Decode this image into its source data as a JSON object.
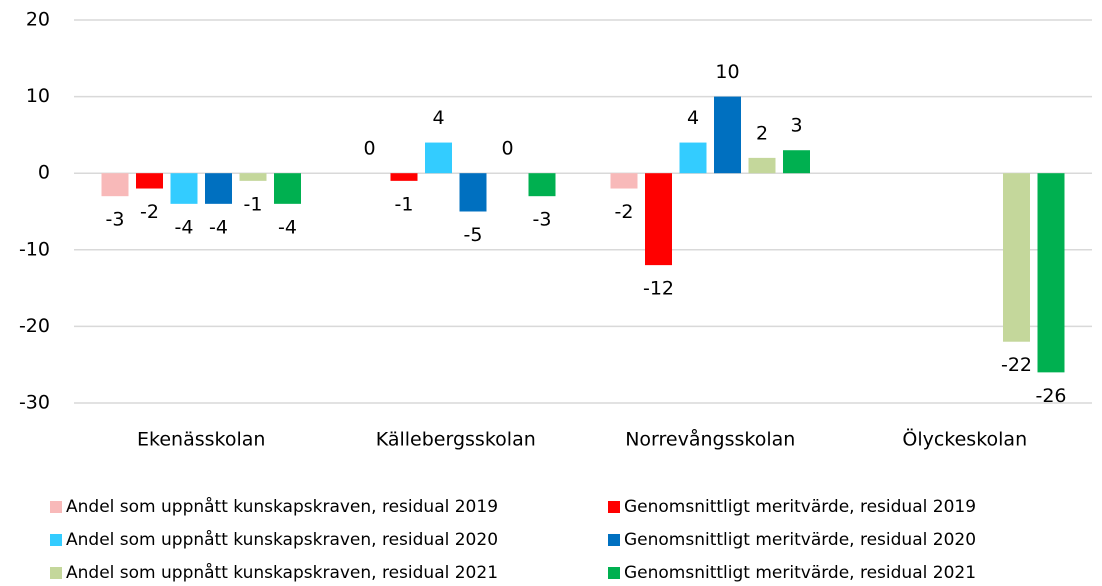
{
  "chart_data": {
    "type": "bar",
    "categories": [
      "Ekenässkolan",
      "Källebergsskolan",
      "Norrevångsskolan",
      "Ölyckeskolan"
    ],
    "series": [
      {
        "name": "Andel som uppnått kunskapskraven, residual 2019",
        "color": "#f8b9b9",
        "values": [
          -3,
          0,
          -2,
          null
        ]
      },
      {
        "name": "Genomsnittligt meritvärde, residual 2019",
        "color": "#ff0000",
        "values": [
          -2,
          -1,
          -12,
          null
        ]
      },
      {
        "name": "Andel som uppnått kunskapskraven, residual 2020",
        "color": "#33ccff",
        "values": [
          -4,
          4,
          4,
          null
        ]
      },
      {
        "name": "Genomsnittligt meritvärde, residual 2020",
        "color": "#0070c0",
        "values": [
          -4,
          -5,
          10,
          null
        ]
      },
      {
        "name": "Andel som uppnått kunskapskraven, residual 2021",
        "color": "#c4d79b",
        "values": [
          -1,
          0,
          2,
          -22
        ]
      },
      {
        "name": "Genomsnittligt meritvärde, residual 2021",
        "color": "#00b050",
        "values": [
          -4,
          -3,
          3,
          -26
        ]
      }
    ],
    "ylim": [
      -30,
      20
    ],
    "yticks": [
      -30,
      -20,
      -10,
      0,
      10,
      20
    ],
    "grid": true
  }
}
